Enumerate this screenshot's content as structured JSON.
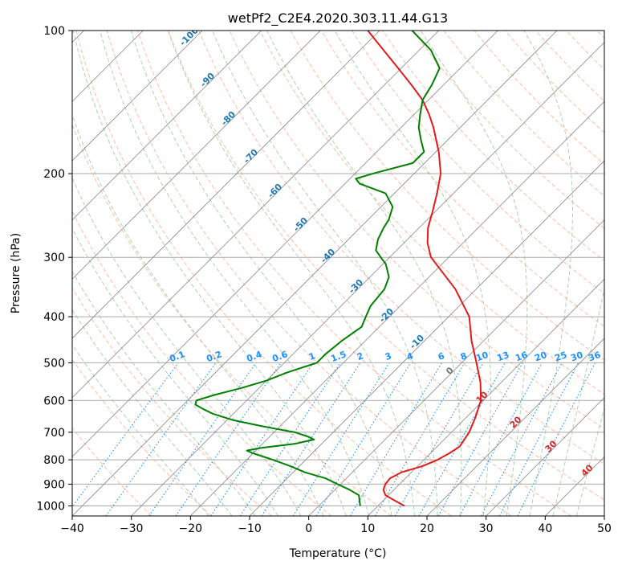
{
  "chart_data": {
    "type": "line",
    "title": "wetPf2_C2E4.2020.303.11.44.G13",
    "xlabel": "Temperature (°C)",
    "ylabel": "Pressure (hPa)",
    "xlim": [
      -40,
      50
    ],
    "ylim": [
      1050,
      100
    ],
    "y_scale": "log",
    "x_ticks": [
      -40,
      -30,
      -20,
      -10,
      0,
      10,
      20,
      30,
      40,
      50
    ],
    "y_ticks": [
      1000,
      900,
      800,
      700,
      600,
      500,
      400,
      300,
      200,
      100
    ],
    "grid": true,
    "series": [
      {
        "color": "#e31a1c",
        "role": "temperature",
        "points": [
          [
            1000,
            14.5
          ],
          [
            975,
            12.0
          ],
          [
            950,
            9.5
          ],
          [
            925,
            8.2
          ],
          [
            900,
            7.6
          ],
          [
            875,
            7.4
          ],
          [
            850,
            8.3
          ],
          [
            825,
            10.8
          ],
          [
            800,
            12.3
          ],
          [
            775,
            13.2
          ],
          [
            750,
            13.8
          ],
          [
            700,
            13.0
          ],
          [
            650,
            11.5
          ],
          [
            600,
            9.6
          ],
          [
            550,
            6.5
          ],
          [
            500,
            2.5
          ],
          [
            450,
            -2.0
          ],
          [
            400,
            -6.5
          ],
          [
            350,
            -13.5
          ],
          [
            300,
            -23.0
          ],
          [
            280,
            -26.0
          ],
          [
            260,
            -28.5
          ],
          [
            240,
            -30.5
          ],
          [
            220,
            -32.8
          ],
          [
            200,
            -35.5
          ],
          [
            180,
            -39.5
          ],
          [
            160,
            -44.5
          ],
          [
            150,
            -47.5
          ],
          [
            140,
            -51.0
          ],
          [
            130,
            -55.5
          ],
          [
            120,
            -60.5
          ],
          [
            110,
            -66.0
          ],
          [
            100,
            -72.0
          ]
        ]
      },
      {
        "color": "#008000",
        "role": "dewpoint",
        "points": [
          [
            1000,
            7.0
          ],
          [
            950,
            5.0
          ],
          [
            925,
            2.5
          ],
          [
            900,
            -0.5
          ],
          [
            875,
            -3.5
          ],
          [
            850,
            -8.0
          ],
          [
            825,
            -11.5
          ],
          [
            800,
            -15.5
          ],
          [
            775,
            -20.0
          ],
          [
            765,
            -21.5
          ],
          [
            755,
            -19.5
          ],
          [
            740,
            -14.5
          ],
          [
            725,
            -12.0
          ],
          [
            715,
            -13.5
          ],
          [
            700,
            -16.5
          ],
          [
            680,
            -23.0
          ],
          [
            660,
            -29.0
          ],
          [
            640,
            -33.5
          ],
          [
            625,
            -36.0
          ],
          [
            612,
            -38.0
          ],
          [
            600,
            -38.5
          ],
          [
            585,
            -36.5
          ],
          [
            565,
            -33.0
          ],
          [
            545,
            -30.0
          ],
          [
            525,
            -28.0
          ],
          [
            500,
            -24.5
          ],
          [
            480,
            -24.5
          ],
          [
            450,
            -24.0
          ],
          [
            420,
            -23.0
          ],
          [
            400,
            -24.0
          ],
          [
            380,
            -25.0
          ],
          [
            350,
            -25.5
          ],
          [
            330,
            -26.8
          ],
          [
            310,
            -29.5
          ],
          [
            300,
            -31.5
          ],
          [
            290,
            -33.5
          ],
          [
            275,
            -35.0
          ],
          [
            260,
            -36.0
          ],
          [
            250,
            -36.5
          ],
          [
            235,
            -38.0
          ],
          [
            220,
            -41.5
          ],
          [
            210,
            -47.5
          ],
          [
            205,
            -49.0
          ],
          [
            200,
            -47.0
          ],
          [
            190,
            -42.0
          ],
          [
            180,
            -42.0
          ],
          [
            170,
            -44.5
          ],
          [
            160,
            -47.0
          ],
          [
            150,
            -49.0
          ],
          [
            140,
            -51.0
          ],
          [
            130,
            -52.0
          ],
          [
            120,
            -53.5
          ],
          [
            110,
            -58.0
          ],
          [
            100,
            -64.5
          ]
        ]
      }
    ],
    "dry_adiabat_labels": [
      -100,
      -90,
      -80,
      -70,
      -60,
      -50,
      -40,
      -30,
      -20,
      -10
    ],
    "moist_adiabat_labels": [
      0,
      10,
      20,
      30,
      40
    ],
    "mixing_ratio_labels": [
      "0.1",
      "0.2",
      "0.4",
      "0.6",
      "1",
      "1.5",
      "2",
      "3",
      "4",
      "6",
      "8",
      "10",
      "13",
      "16",
      "20",
      "25",
      "30",
      "36"
    ],
    "colors": {
      "isotherm": "#888888",
      "isobar": "#aaaaaa",
      "dry_adiabat": "#ffa07a",
      "moist_adiabat": "#8fbc8f",
      "mixing_ratio": "#1e90ff",
      "dry_label": "#1f77b4",
      "moist_label": "#d62728",
      "moist_zero_label": "#777777",
      "mixing_label": "#1e90ff"
    }
  }
}
